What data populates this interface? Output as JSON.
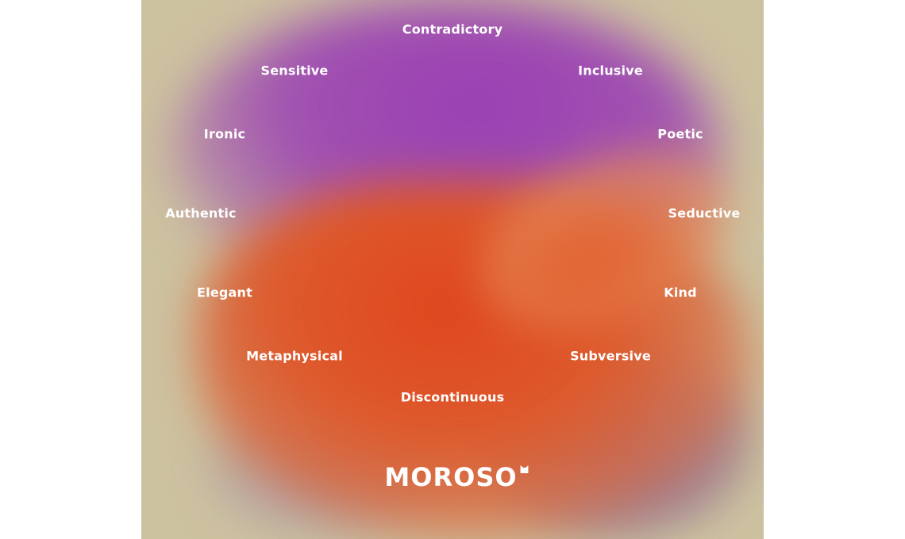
{
  "poster": {
    "words": [
      "Contradictory",
      "Sensitive",
      "Inclusive",
      "Ironic",
      "Poetic",
      "Authentic",
      "Seductive",
      "Elegant",
      "Kind",
      "Metaphysical",
      "Subversive",
      "Discontinuous"
    ],
    "logo": "MOROSO",
    "colors": {
      "background": "#cdc2a0",
      "purple": "#9a3fb4",
      "orange": "#e0451e",
      "mauve": "#8a6490",
      "text": "#ffffff"
    }
  }
}
